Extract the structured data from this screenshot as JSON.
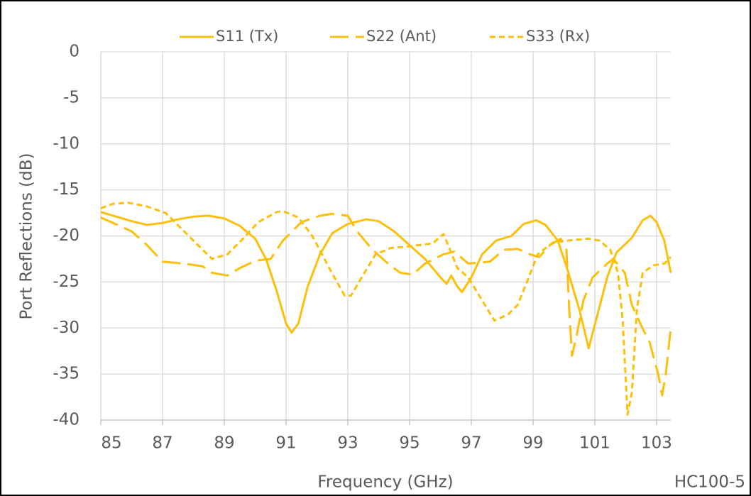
{
  "chart_data": {
    "type": "line",
    "y_label": "Port Reflections (dB)",
    "x_label": "Frequency (GHz)",
    "annotation": "HC100-5",
    "xlim": [
      85,
      103.46
    ],
    "xticks": [
      85,
      87,
      89,
      91,
      93,
      95,
      97,
      99,
      101,
      103
    ],
    "ylim": [
      -40,
      0
    ],
    "yticks": [
      0,
      -5,
      -10,
      -15,
      -20,
      -25,
      -30,
      -35,
      -40
    ],
    "grid": true,
    "legend": "top",
    "series": [
      {
        "name": "S11 (Tx)",
        "color": "#fbbf0c",
        "line_style": "solid",
        "x": [
          85,
          86,
          86.5,
          87,
          87.5,
          88,
          88.5,
          89,
          89.5,
          90,
          90.35,
          90.7,
          91,
          91.18,
          91.4,
          91.7,
          92.1,
          92.5,
          93,
          93.6,
          94,
          94.5,
          95,
          95.5,
          96,
          96.2,
          96.35,
          96.55,
          96.7,
          97,
          97.35,
          97.8,
          98.3,
          98.7,
          99.1,
          99.4,
          99.8,
          100.1,
          100.5,
          100.8,
          101.05,
          101.4,
          101.7,
          102.2,
          102.55,
          102.8,
          103,
          103.25,
          103.46
        ],
        "values": [
          -17.4,
          -18.4,
          -18.8,
          -18.6,
          -18.2,
          -17.9,
          -17.8,
          -18.1,
          -18.9,
          -20.3,
          -22.5,
          -26,
          -29.5,
          -30.5,
          -29.5,
          -25.5,
          -22,
          -19.7,
          -18.7,
          -18.2,
          -18.4,
          -19.5,
          -21,
          -22.5,
          -24.5,
          -25.2,
          -24.3,
          -25.5,
          -26.1,
          -24.5,
          -22,
          -20.5,
          -20,
          -18.7,
          -18.3,
          -18.8,
          -20.5,
          -23.5,
          -28,
          -32.2,
          -29,
          -24.5,
          -21.8,
          -20.2,
          -18.3,
          -17.8,
          -18.5,
          -20.5,
          -24
        ]
      },
      {
        "name": "S22 (Ant)",
        "color": "#fbbf0c",
        "line_style": "long-dash",
        "x": [
          85,
          86,
          86.5,
          87,
          87.7,
          88.3,
          88.6,
          89.1,
          89.5,
          90,
          90.5,
          90.9,
          91.5,
          92.1,
          92.5,
          93,
          93.3,
          93.8,
          94.3,
          94.7,
          95.1,
          95.5,
          96.1,
          96.45,
          96.9,
          97.6,
          98.05,
          98.5,
          98.9,
          99.2,
          99.55,
          99.9,
          100.08,
          100.17,
          100.26,
          100.4,
          100.63,
          100.93,
          101.4,
          101.6,
          101.97,
          102.2,
          102.54,
          102.77,
          103.05,
          103.18,
          103.3,
          103.46
        ],
        "values": [
          -18,
          -19.5,
          -21,
          -22.8,
          -23,
          -23.3,
          -24,
          -24.3,
          -23.5,
          -22.7,
          -22.5,
          -20.5,
          -18.5,
          -17.8,
          -17.6,
          -17.8,
          -19.5,
          -21.5,
          -23,
          -24,
          -24.2,
          -23,
          -22,
          -21.7,
          -23,
          -22.8,
          -21.5,
          -21.4,
          -22,
          -22.3,
          -21,
          -20.3,
          -21.5,
          -28,
          -33,
          -31,
          -27,
          -24.5,
          -23,
          -22.5,
          -24,
          -27.5,
          -30,
          -31.5,
          -35,
          -37.3,
          -35,
          -30
        ]
      },
      {
        "name": "S33 (Rx)",
        "color": "#fbbf0c",
        "line_style": "short-dash",
        "x": [
          85,
          85.4,
          85.9,
          86.5,
          87.1,
          87.7,
          88.3,
          88.6,
          89.1,
          89.55,
          90.1,
          90.7,
          90.9,
          91.4,
          91.85,
          92.4,
          92.9,
          93.1,
          93.45,
          93.9,
          94.4,
          94.8,
          95.3,
          95.75,
          96.1,
          96.25,
          96.55,
          96.9,
          97.35,
          97.75,
          98.2,
          98.5,
          98.8,
          99.15,
          99.65,
          100.1,
          100.8,
          101.15,
          101.5,
          101.75,
          101.9,
          102.06,
          102.2,
          102.36,
          102.55,
          102.9,
          103.25,
          103.46
        ],
        "values": [
          -17,
          -16.5,
          -16.4,
          -16.8,
          -17.5,
          -19.5,
          -21.5,
          -22.5,
          -22,
          -20.5,
          -18.5,
          -17.4,
          -17.3,
          -18,
          -20,
          -23.5,
          -26.5,
          -26.5,
          -24.5,
          -22,
          -21.3,
          -21.2,
          -21,
          -20.8,
          -19.8,
          -21,
          -23.5,
          -24.5,
          -27,
          -29.2,
          -28.5,
          -27.5,
          -25,
          -22,
          -20.7,
          -20.5,
          -20.3,
          -20.5,
          -21.5,
          -24,
          -29,
          -39.4,
          -37,
          -28,
          -24,
          -23.2,
          -23,
          -22.3
        ]
      }
    ]
  }
}
